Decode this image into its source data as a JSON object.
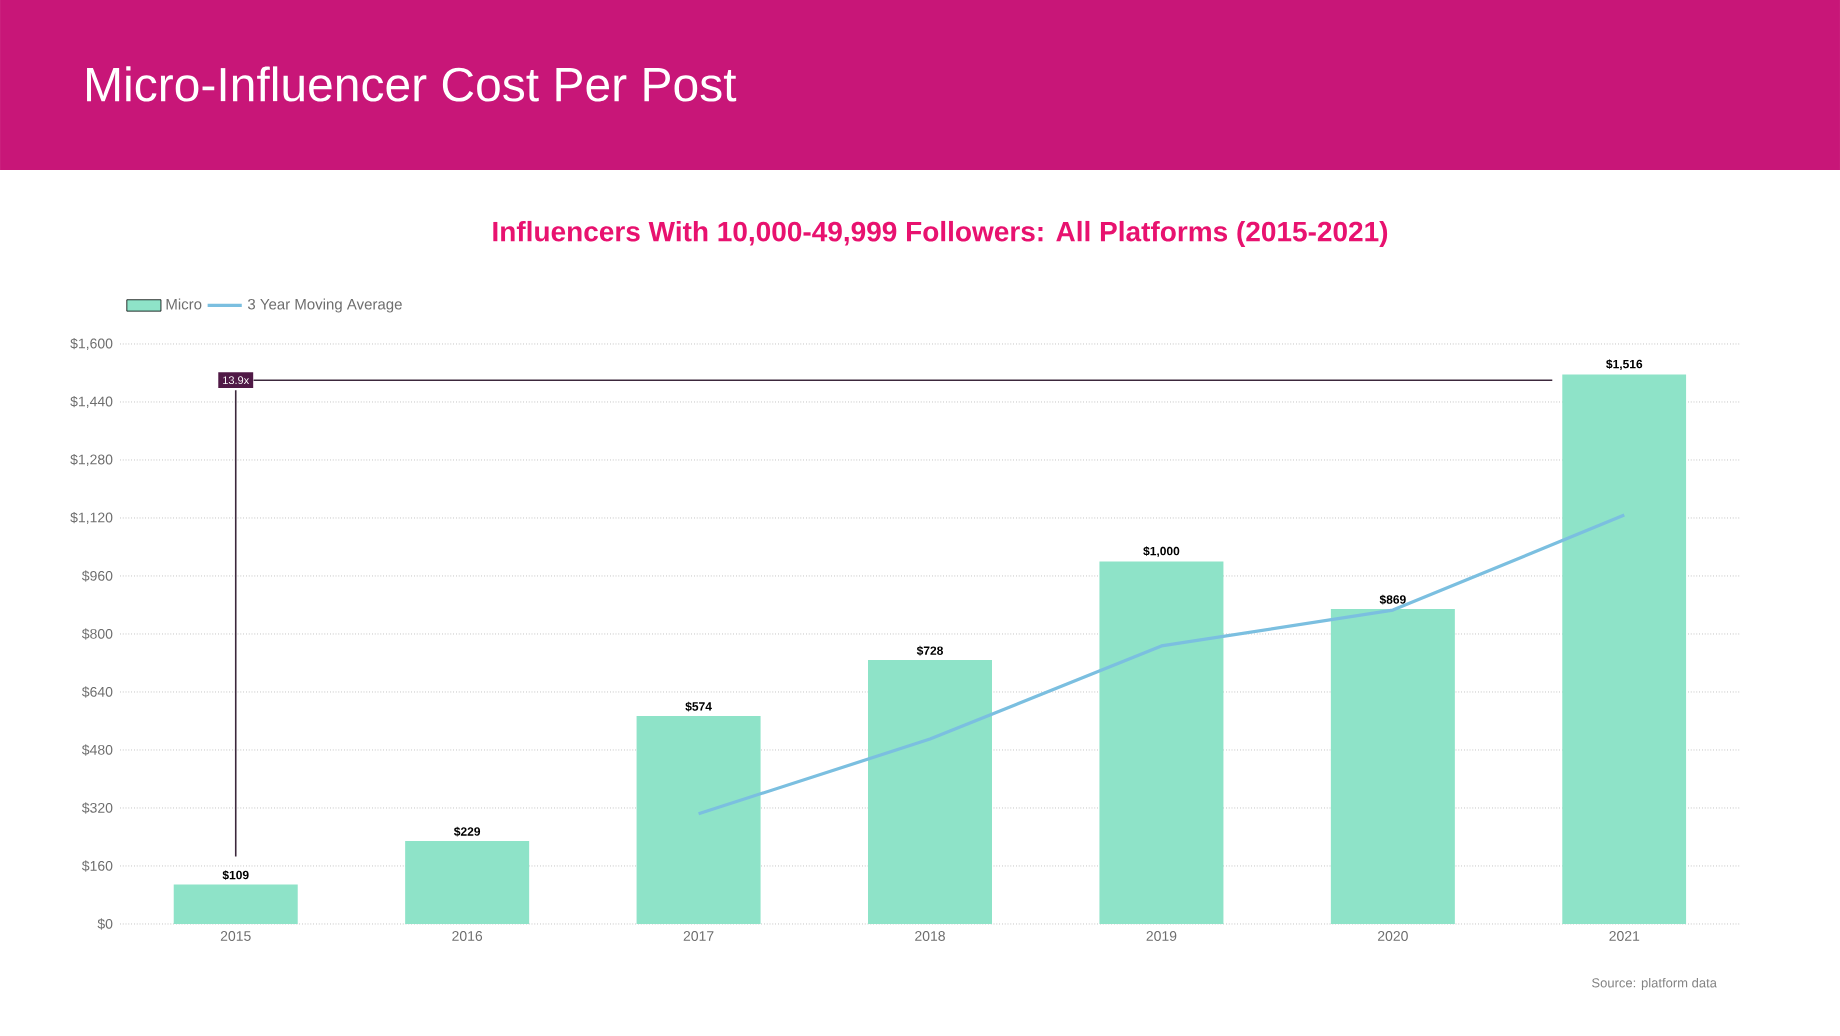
{
  "chart_data": {
    "type": "bar",
    "title": "Micro-Influencer Cost Per Post",
    "subtitle": "Influencers With 10,000-49,999 Followers: All Platforms (2015-2021)",
    "categories": [
      "2015",
      "2016",
      "2017",
      "2018",
      "2019",
      "2020",
      "2021"
    ],
    "series": [
      {
        "name": "Micro",
        "color": "#8ee3c8",
        "values": [
          109,
          229,
          574,
          728,
          1000,
          869,
          1516
        ],
        "value_labels": [
          "$109",
          "$229",
          "$574",
          "$728",
          "$1,000",
          "$869",
          "$1,516"
        ]
      },
      {
        "name": "3 Year Moving Average",
        "type": "line",
        "color": "#7bbfe0",
        "values": [
          null,
          null,
          304,
          510,
          767,
          866,
          1128
        ]
      }
    ],
    "ylim": [
      0,
      1600
    ],
    "yticks": [
      {
        "value": 0,
        "label": "$0"
      },
      {
        "value": 160,
        "label": "$160"
      },
      {
        "value": 320,
        "label": "$320"
      },
      {
        "value": 480,
        "label": "$480"
      },
      {
        "value": 640,
        "label": "$640"
      },
      {
        "value": 800,
        "label": "$800"
      },
      {
        "value": 960,
        "label": "$960"
      },
      {
        "value": 1120,
        "label": "$1,120"
      },
      {
        "value": 1280,
        "label": "$1,280"
      },
      {
        "value": 1440,
        "label": "$1,440"
      },
      {
        "value": 1600,
        "label": "$1,600"
      }
    ],
    "grid": "y",
    "legend": "top left",
    "ref_lines": [
      {
        "axis": "y",
        "value": 1500,
        "label": "13.9x",
        "color": "#3c283c"
      },
      {
        "axis": "x",
        "value": "2015",
        "color": "#3c283c"
      }
    ],
    "annotations": [
      "Source: platform data"
    ]
  }
}
